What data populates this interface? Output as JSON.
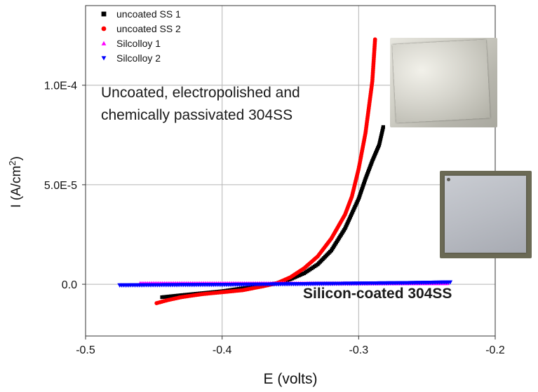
{
  "chart_data": {
    "type": "scatter",
    "title": "",
    "xlabel": "E (volts)",
    "ylabel_main": "I (A/cm",
    "ylabel_sup": "2",
    "ylabel_tail": ")",
    "xlim": [
      -0.5,
      -0.2
    ],
    "ylim": [
      -2.6e-05,
      0.00014
    ],
    "xticks": [
      -0.5,
      -0.4,
      -0.3,
      -0.2
    ],
    "xtick_labels": [
      "-0.5",
      "-0.4",
      "-0.3",
      "-0.2"
    ],
    "yticks": [
      0,
      5e-05,
      0.0001
    ],
    "ytick_labels": [
      "0.0",
      "5.0E-5",
      "1.0E-4"
    ],
    "grid": true,
    "legend_position": "top-left",
    "series": [
      {
        "name": "uncoated SS 1",
        "marker": "square",
        "color": "#000000",
        "x": [
          -0.444,
          -0.43,
          -0.415,
          -0.4,
          -0.385,
          -0.37,
          -0.36,
          -0.35,
          -0.34,
          -0.33,
          -0.32,
          -0.31,
          -0.3,
          -0.295,
          -0.29,
          -0.285,
          -0.282
        ],
        "y": [
          -6.5e-06,
          -5.5e-06,
          -4.5e-06,
          -3.5e-06,
          -2e-06,
          -6e-07,
          5e-07,
          2.5e-06,
          5.5e-06,
          1e-05,
          1.7e-05,
          2.8e-05,
          4.3e-05,
          5.3e-05,
          6.2e-05,
          7e-05,
          7.9e-05
        ]
      },
      {
        "name": "uncoated SS 2",
        "marker": "circle",
        "color": "#ff0000",
        "x": [
          -0.448,
          -0.44,
          -0.43,
          -0.415,
          -0.4,
          -0.385,
          -0.37,
          -0.36,
          -0.35,
          -0.34,
          -0.33,
          -0.32,
          -0.31,
          -0.305,
          -0.3,
          -0.295,
          -0.29,
          -0.288
        ],
        "y": [
          -9.5e-06,
          -8e-06,
          -6.5e-06,
          -5e-06,
          -4e-06,
          -3e-06,
          -1e-06,
          5e-07,
          3.5e-06,
          8e-06,
          1.4e-05,
          2.3e-05,
          3.5e-05,
          4.4e-05,
          5.8e-05,
          7.6e-05,
          0.000102,
          0.000123
        ]
      },
      {
        "name": "Silcolloy 1",
        "marker": "triangle-up",
        "color": "#ff00ff",
        "x": [
          -0.46,
          -0.43,
          -0.4,
          -0.37,
          -0.34,
          -0.31,
          -0.28,
          -0.25,
          -0.235
        ],
        "y": [
          5e-07,
          5e-07,
          5e-07,
          5e-07,
          5e-07,
          5e-07,
          5e-07,
          5e-07,
          5e-07
        ]
      },
      {
        "name": "Silcolloy 2",
        "marker": "triangle-down",
        "color": "#0000ff",
        "x": [
          -0.475,
          -0.45,
          -0.42,
          -0.39,
          -0.36,
          -0.33,
          -0.3,
          -0.27,
          -0.25,
          -0.233
        ],
        "y": [
          -5e-07,
          -4e-07,
          -3e-07,
          -2e-07,
          0,
          2e-07,
          4e-07,
          6e-07,
          8e-07,
          1e-06
        ]
      }
    ],
    "annotations": [
      {
        "id": "uncoated",
        "lines": [
          "Uncoated, electropolished and",
          "chemically passivated 304SS"
        ],
        "bold": false
      },
      {
        "id": "coated",
        "lines": [
          "Silicon-coated 304SS"
        ],
        "bold": true
      }
    ]
  }
}
